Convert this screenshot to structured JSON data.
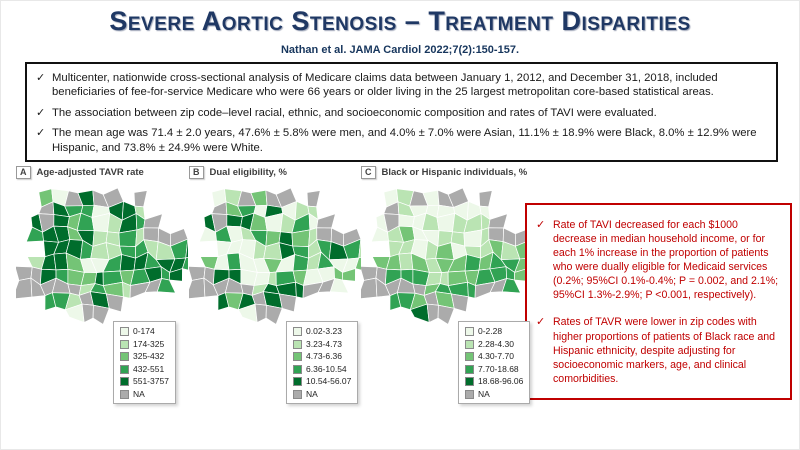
{
  "slide": {
    "title": "Severe Aortic Stenosis – Treatment Disparities",
    "citation": "Nathan et al. JAMA Cardiol 2022;7(2):150-157.",
    "colors": {
      "title_navy": "#1F3864",
      "citation_navy": "#17365D",
      "findings_red": "#C00000",
      "summary_border": "#111111"
    }
  },
  "summary_box": {
    "marker": "✓",
    "bullets": [
      "Multicenter, nationwide cross-sectional analysis of Medicare claims data between January 1, 2012, and December 31, 2018, included beneficiaries of fee-for-service Medicare who were 66 years or older living in the 25 largest metropolitan core-based statistical areas.",
      "The association between zip code–level racial, ethnic, and socioeconomic composition and rates of TAVI were evaluated.",
      "The mean age was 71.4 ± 2.0 years, 47.6% ± 5.8% were men, and 4.0% ± 7.0% were Asian, 11.1% ± 18.9% were Black, 8.0% ± 12.9% were Hispanic, and 73.8% ± 24.9% were White."
    ]
  },
  "findings_box": {
    "marker": "✓",
    "bullets": [
      "Rate of TAVI decreased for each $1000 decrease in median household income, or for each 1% increase in the proportion of patients who were dually eligible for Medicaid services (0.2%; 95%CI 0.1%-0.4%; P = 0.002, and 2.1%; 95%CI 1.3%-2.9%; P <0.001, respectively).",
      "Rates of TAVR were lower in zip codes with higher proportions of patients of Black race and Hispanic ethnicity, despite adjusting for socioeconomic markers, age, and clinical comorbidities."
    ]
  },
  "chart_data": [
    {
      "type": "choropleth",
      "panel_label": "A",
      "title": "Age-adjusted TAVR rate",
      "legend_bins": [
        "0-174",
        "174-325",
        "325-432",
        "432-551",
        "551-3757",
        "NA"
      ],
      "palette": [
        "#EDF8E9",
        "#BAE4B3",
        "#74C476",
        "#31A354",
        "#006D2C"
      ],
      "na_color": "#ABABAB",
      "legend_position": "bottom-right",
      "shade_profile": "mixed-dark"
    },
    {
      "type": "choropleth",
      "panel_label": "B",
      "title": "Dual eligibility, %",
      "legend_bins": [
        "0.02-3.23",
        "3.23-4.73",
        "4.73-6.36",
        "6.36-10.54",
        "10.54-56.07",
        "NA"
      ],
      "palette": [
        "#EDF8E9",
        "#BAE4B3",
        "#74C476",
        "#31A354",
        "#006D2C"
      ],
      "na_color": "#ABABAB",
      "legend_position": "bottom-right",
      "shade_profile": "mixed-light"
    },
    {
      "type": "choropleth",
      "panel_label": "C",
      "title": "Black or Hispanic individuals, %",
      "legend_bins": [
        "0-2.28",
        "2.28-4.30",
        "4.30-7.70",
        "7.70-18.68",
        "18.68-96.06",
        "NA"
      ],
      "palette": [
        "#EDF8E9",
        "#BAE4B3",
        "#74C476",
        "#31A354",
        "#006D2C"
      ],
      "na_color": "#ABABAB",
      "legend_position": "bottom-right",
      "shade_profile": "north-light-south-dark"
    }
  ]
}
